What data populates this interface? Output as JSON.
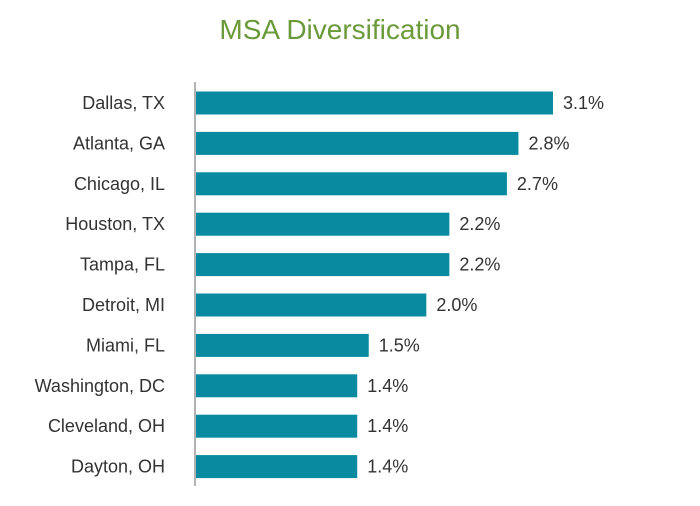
{
  "chart_data": {
    "type": "bar",
    "orientation": "horizontal",
    "title": "MSA Diversification",
    "categories": [
      "Dallas, TX",
      "Atlanta, GA",
      "Chicago, IL",
      "Houston, TX",
      "Tampa, FL",
      "Detroit, MI",
      "Miami, FL",
      "Washington, DC",
      "Cleveland, OH",
      "Dayton, OH"
    ],
    "values": [
      3.1,
      2.8,
      2.7,
      2.2,
      2.2,
      2.0,
      1.5,
      1.4,
      1.4,
      1.4
    ],
    "value_labels": [
      "3.1%",
      "2.8%",
      "2.7%",
      "2.2%",
      "2.2%",
      "2.0%",
      "1.5%",
      "1.4%",
      "1.4%",
      "1.4%"
    ],
    "xlabel": "",
    "ylabel": "",
    "xlim": [
      0,
      3.1
    ],
    "grid": false,
    "legend": "none",
    "bar_color": "#0a8aa0",
    "title_color": "#6b9a3a"
  }
}
